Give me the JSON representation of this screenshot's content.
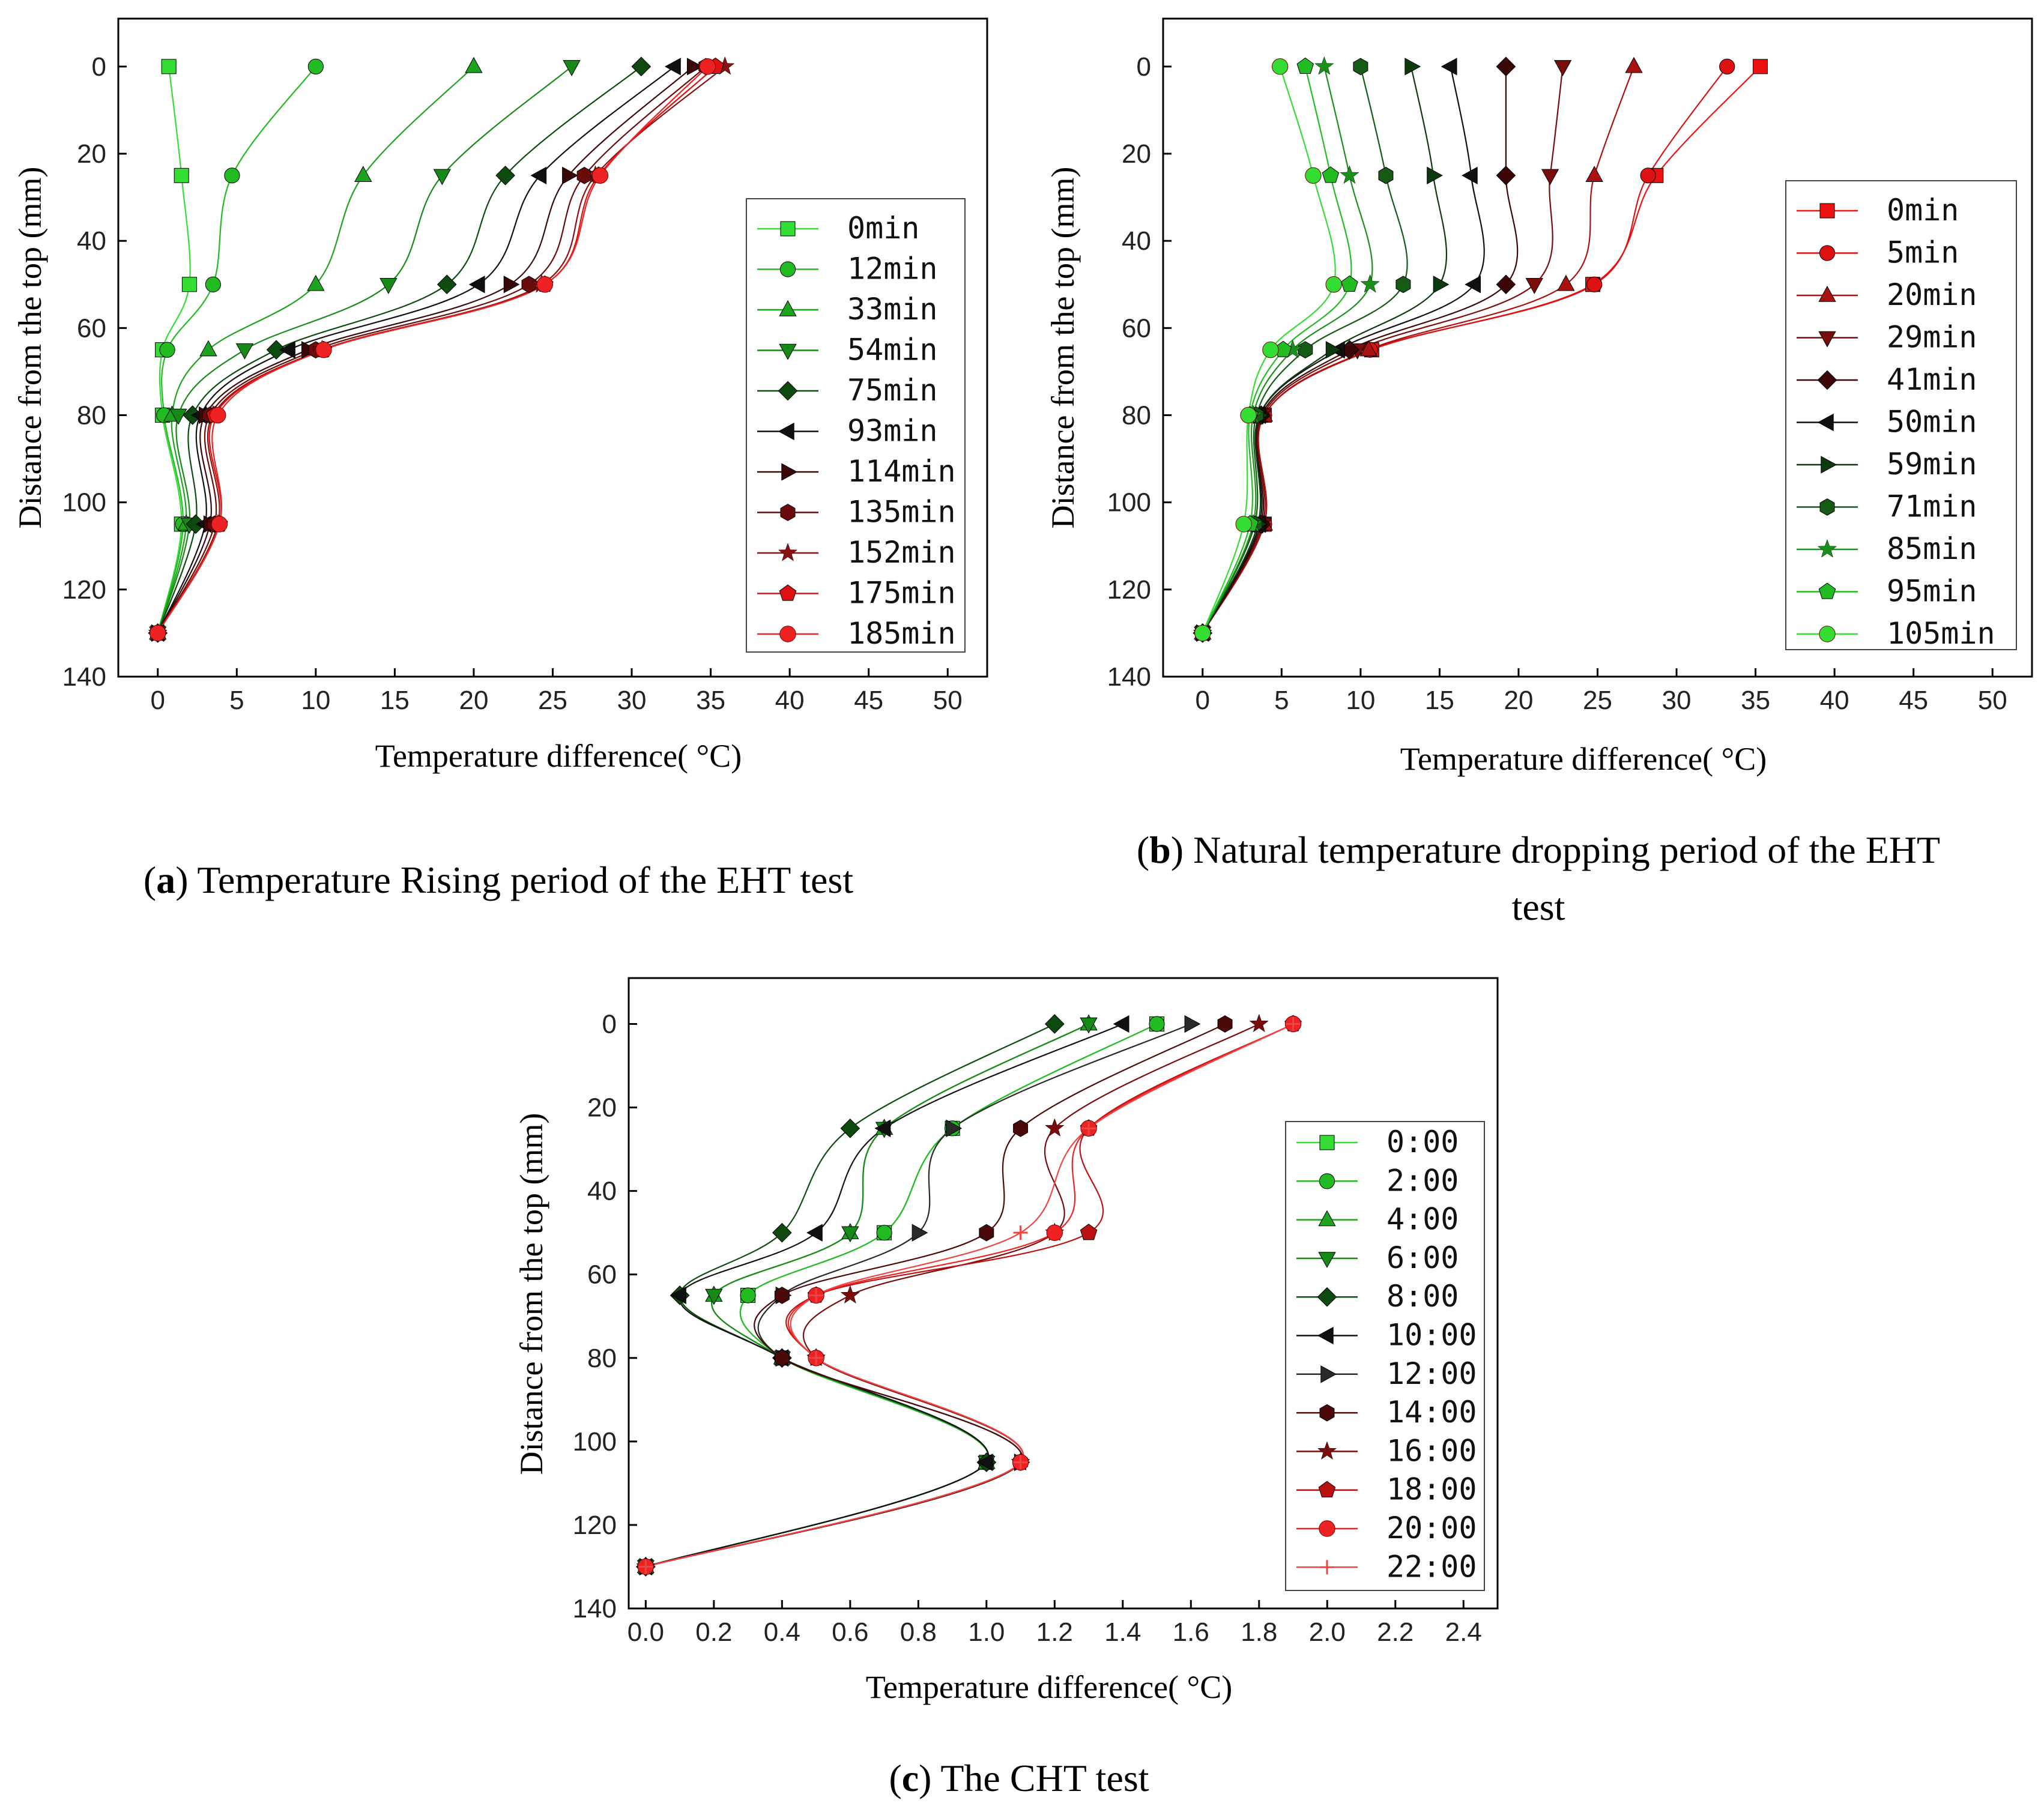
{
  "chart_data": [
    {
      "id": "a",
      "type": "line",
      "xlabel": "Temperature difference( °C)",
      "ylabel": "Distance from the top (mm)",
      "xlim": [
        -2.5,
        52.5
      ],
      "ylim": [
        -11,
        140
      ],
      "y_inverted": true,
      "xticks": [
        0,
        5,
        10,
        15,
        20,
        25,
        30,
        35,
        40,
        45,
        50
      ],
      "xtick_labels": [
        "0",
        "5",
        "10",
        "15",
        "20",
        "25",
        "30",
        "35",
        "40",
        "45",
        "50"
      ],
      "yticks": [
        0,
        20,
        40,
        60,
        80,
        100,
        120,
        140
      ],
      "ytick_labels": [
        "0",
        "20",
        "40",
        "60",
        "80",
        "100",
        "120",
        "140"
      ],
      "legend_position": "right",
      "caption": {
        "letter": "a",
        "text": ") Temperature Rising period of the EHT test"
      },
      "depth": [
        0,
        25,
        50,
        65,
        80,
        105,
        130
      ],
      "series": [
        {
          "name": "0min",
          "color": "#33dd33",
          "marker": "square",
          "values": [
            0.7,
            1.5,
            2.0,
            0.3,
            0.3,
            1.5,
            0
          ]
        },
        {
          "name": "12min",
          "color": "#22bb22",
          "marker": "circle",
          "values": [
            10.0,
            4.7,
            3.5,
            0.6,
            0.4,
            1.6,
            0
          ]
        },
        {
          "name": "33min",
          "color": "#1ea31e",
          "marker": "triangle-up",
          "values": [
            20.0,
            13.0,
            10.0,
            3.2,
            0.9,
            1.8,
            0
          ]
        },
        {
          "name": "54min",
          "color": "#168a16",
          "marker": "triangle-down",
          "values": [
            26.2,
            18.0,
            14.6,
            5.5,
            1.3,
            2.0,
            0
          ]
        },
        {
          "name": "75min",
          "color": "#0d4a0d",
          "marker": "diamond",
          "values": [
            30.6,
            22.0,
            18.3,
            7.5,
            2.2,
            2.4,
            0
          ]
        },
        {
          "name": "93min",
          "color": "#101010",
          "marker": "triangle-left",
          "values": [
            32.7,
            24.2,
            20.3,
            8.3,
            2.7,
            3.0,
            0
          ]
        },
        {
          "name": "114min",
          "color": "#3a0808",
          "marker": "triangle-right",
          "values": [
            33.9,
            26.0,
            22.3,
            9.5,
            3.0,
            3.3,
            0
          ]
        },
        {
          "name": "135min",
          "color": "#6a0b0b",
          "marker": "hexagon",
          "values": [
            34.7,
            27.0,
            23.5,
            10.0,
            3.3,
            3.6,
            0
          ]
        },
        {
          "name": "152min",
          "color": "#8a1010",
          "marker": "star",
          "values": [
            35.9,
            27.7,
            24.3,
            10.4,
            3.5,
            3.8,
            0
          ]
        },
        {
          "name": "175min",
          "color": "#dd1111",
          "marker": "pentagon",
          "values": [
            35.3,
            27.9,
            24.5,
            10.5,
            3.6,
            3.9,
            0
          ]
        },
        {
          "name": "185min",
          "color": "#ee2222",
          "marker": "sphere",
          "values": [
            34.8,
            28.0,
            24.5,
            10.5,
            3.8,
            3.9,
            0
          ]
        }
      ]
    },
    {
      "id": "b",
      "type": "line",
      "xlabel": "Temperature difference( °C)",
      "ylabel": "Distance from the top (mm)",
      "xlim": [
        -2.5,
        52.5
      ],
      "ylim": [
        -11,
        140
      ],
      "y_inverted": true,
      "xticks": [
        0,
        5,
        10,
        15,
        20,
        25,
        30,
        35,
        40,
        45,
        50
      ],
      "xtick_labels": [
        "0",
        "5",
        "10",
        "15",
        "20",
        "25",
        "30",
        "35",
        "40",
        "45",
        "50"
      ],
      "yticks": [
        0,
        20,
        40,
        60,
        80,
        100,
        120,
        140
      ],
      "ytick_labels": [
        "0",
        "20",
        "40",
        "60",
        "80",
        "100",
        "120",
        "140"
      ],
      "legend_position": "right",
      "caption": {
        "letter": "b",
        "text": ") Natural temperature dropping period of the EHT",
        "text2": "test"
      },
      "depth": [
        0,
        25,
        50,
        65,
        80,
        105,
        130
      ],
      "series": [
        {
          "name": "0min",
          "color": "#ee1111",
          "marker": "square",
          "values": [
            35.3,
            28.7,
            24.7,
            10.7,
            3.9,
            3.9,
            0
          ]
        },
        {
          "name": "5min",
          "color": "#dd1111",
          "marker": "circle",
          "values": [
            33.2,
            28.2,
            24.8,
            10.6,
            3.9,
            3.9,
            0
          ]
        },
        {
          "name": "20min",
          "color": "#aa1111",
          "marker": "triangle-up",
          "values": [
            27.3,
            24.8,
            23.0,
            10.5,
            3.9,
            3.9,
            0
          ]
        },
        {
          "name": "29min",
          "color": "#7a0b0b",
          "marker": "triangle-down",
          "values": [
            22.8,
            22.0,
            21.0,
            9.8,
            3.8,
            3.8,
            0
          ]
        },
        {
          "name": "41min",
          "color": "#3a0606",
          "marker": "diamond",
          "values": [
            19.2,
            19.2,
            19.2,
            9.3,
            3.7,
            3.7,
            0
          ]
        },
        {
          "name": "50min",
          "color": "#101010",
          "marker": "triangle-left",
          "values": [
            15.7,
            17.0,
            17.2,
            8.6,
            3.6,
            3.6,
            0
          ]
        },
        {
          "name": "59min",
          "color": "#0d3a0d",
          "marker": "triangle-right",
          "values": [
            13.2,
            14.6,
            15.0,
            8.2,
            3.6,
            3.5,
            0
          ]
        },
        {
          "name": "71min",
          "color": "#155a15",
          "marker": "hexagon",
          "values": [
            10.0,
            11.6,
            12.7,
            6.5,
            3.4,
            3.3,
            0
          ]
        },
        {
          "name": "85min",
          "color": "#199019",
          "marker": "star",
          "values": [
            7.7,
            9.3,
            10.6,
            5.7,
            3.2,
            3.2,
            0
          ]
        },
        {
          "name": "95min",
          "color": "#22bb22",
          "marker": "pentagon",
          "values": [
            6.5,
            8.1,
            9.3,
            5.1,
            3.0,
            3.0,
            0
          ]
        },
        {
          "name": "105min",
          "color": "#33dd33",
          "marker": "sphere",
          "values": [
            4.9,
            7.0,
            8.3,
            4.3,
            2.9,
            2.6,
            0
          ]
        }
      ]
    },
    {
      "id": "c",
      "type": "line",
      "xlabel": "Temperature difference( °C)",
      "ylabel": "Distance from the top (mm)",
      "xlim": [
        -0.05,
        2.5
      ],
      "ylim": [
        -11,
        140
      ],
      "y_inverted": true,
      "xticks": [
        0,
        0.2,
        0.4,
        0.6,
        0.8,
        1.0,
        1.2,
        1.4,
        1.6,
        1.8,
        2.0,
        2.2,
        2.4
      ],
      "xtick_labels": [
        "0.0",
        "0.2",
        "0.4",
        "0.6",
        "0.8",
        "1.0",
        "1.2",
        "1.4",
        "1.6",
        "1.8",
        "2.0",
        "2.2",
        "2.4"
      ],
      "yticks": [
        0,
        20,
        40,
        60,
        80,
        100,
        120,
        140
      ],
      "ytick_labels": [
        "0",
        "20",
        "40",
        "60",
        "80",
        "100",
        "120",
        "140"
      ],
      "legend_position": "right",
      "caption": {
        "letter": "c",
        "text": ") The CHT test"
      },
      "depth": [
        0,
        25,
        50,
        65,
        80,
        105,
        130
      ],
      "series": [
        {
          "name": "0:00",
          "color": "#33dd33",
          "marker": "square",
          "values": [
            1.5,
            0.9,
            0.7,
            0.3,
            0.4,
            1.0,
            0
          ]
        },
        {
          "name": "2:00",
          "color": "#22bb22",
          "marker": "circle",
          "values": [
            1.5,
            0.9,
            0.7,
            0.3,
            0.4,
            1.0,
            0
          ]
        },
        {
          "name": "4:00",
          "color": "#1ea31e",
          "marker": "triangle-up",
          "values": [
            1.3,
            0.7,
            0.6,
            0.2,
            0.4,
            1.0,
            0
          ]
        },
        {
          "name": "6:00",
          "color": "#168a16",
          "marker": "triangle-down",
          "values": [
            1.3,
            0.7,
            0.6,
            0.2,
            0.4,
            1.0,
            0
          ]
        },
        {
          "name": "8:00",
          "color": "#0d4a0d",
          "marker": "diamond",
          "values": [
            1.2,
            0.6,
            0.4,
            0.1,
            0.4,
            1.0,
            0
          ]
        },
        {
          "name": "10:00",
          "color": "#101010",
          "marker": "triangle-left",
          "values": [
            1.4,
            0.7,
            0.5,
            0.1,
            0.4,
            1.0,
            0
          ]
        },
        {
          "name": "12:00",
          "color": "#2a2a2a",
          "marker": "triangle-right",
          "values": [
            1.6,
            0.9,
            0.8,
            0.4,
            0.4,
            1.1,
            0
          ]
        },
        {
          "name": "14:00",
          "color": "#4a0808",
          "marker": "hexagon",
          "values": [
            1.7,
            1.1,
            1.0,
            0.4,
            0.4,
            1.1,
            0
          ]
        },
        {
          "name": "16:00",
          "color": "#7a0b0b",
          "marker": "star",
          "values": [
            1.8,
            1.2,
            1.2,
            0.6,
            0.5,
            1.1,
            0
          ]
        },
        {
          "name": "18:00",
          "color": "#bb1111",
          "marker": "pentagon",
          "values": [
            1.9,
            1.3,
            1.3,
            0.5,
            0.5,
            1.1,
            0
          ]
        },
        {
          "name": "20:00",
          "color": "#ee2222",
          "marker": "sphere",
          "values": [
            1.9,
            1.3,
            1.2,
            0.5,
            0.5,
            1.1,
            0
          ]
        },
        {
          "name": "22:00",
          "color": "#ee4444",
          "marker": "plus",
          "values": [
            1.9,
            1.3,
            1.1,
            0.5,
            0.5,
            1.1,
            0
          ]
        }
      ]
    }
  ]
}
